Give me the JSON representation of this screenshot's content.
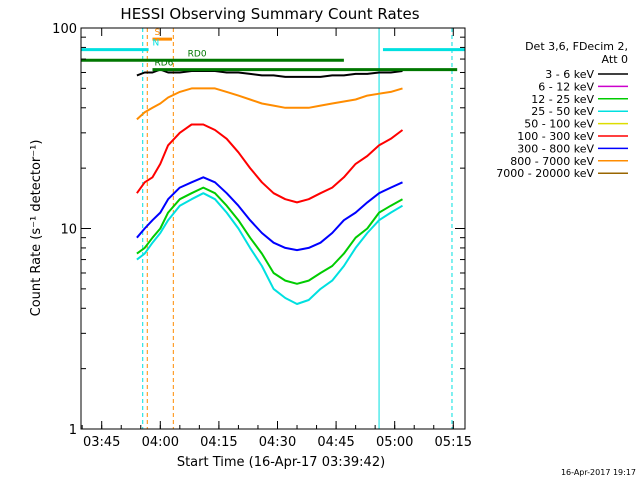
{
  "chart_data": {
    "type": "line",
    "title": "HESSI Observing Summary Count Rates",
    "xlabel": "Start Time (16-Apr-17 03:39:42)",
    "ylabel": "Count Rate (s⁻¹ detector⁻¹)",
    "y_scale": "log",
    "ylim": [
      1,
      100
    ],
    "xlim": [
      "03:39:42",
      "05:18:00"
    ],
    "x_ticks": [
      "03:45",
      "04:00",
      "04:15",
      "04:30",
      "04:45",
      "05:00",
      "05:15"
    ],
    "y_ticks": [
      "1",
      "10",
      "100"
    ],
    "legend_position": "top-right",
    "legend_title": "Det 3,6, FDecim 2,",
    "legend_subtitle": "Att 0",
    "footer": "16-Apr-2017 19:17",
    "x": [
      "03:54",
      "03:56",
      "03:58",
      "04:00",
      "04:02",
      "04:05",
      "04:08",
      "04:11",
      "04:14",
      "04:17",
      "04:20",
      "04:23",
      "04:26",
      "04:29",
      "04:32",
      "04:35",
      "04:38",
      "04:41",
      "04:44",
      "04:47",
      "04:50",
      "04:53",
      "04:56",
      "04:59",
      "05:02"
    ],
    "series": [
      {
        "name": "3 - 6 keV",
        "color": "#000000",
        "values": [
          58,
          60,
          60,
          62,
          60,
          60,
          61,
          61,
          61,
          60,
          60,
          59,
          58,
          58,
          57,
          57,
          57,
          57,
          58,
          58,
          59,
          59,
          60,
          60,
          61
        ]
      },
      {
        "name": "6 - 12 keV",
        "color": "#cc00cc",
        "values": [
          null,
          null,
          null,
          null,
          null,
          null,
          null,
          null,
          null,
          null,
          null,
          null,
          null,
          null,
          null,
          null,
          null,
          null,
          null,
          null,
          null,
          null,
          null,
          null,
          null
        ]
      },
      {
        "name": "12 - 25 keV",
        "color": "#00cc00",
        "values": [
          7.5,
          8,
          9,
          10,
          12,
          14,
          15,
          16,
          15,
          13,
          11,
          9,
          7.5,
          6,
          5.5,
          5.3,
          5.5,
          6,
          6.5,
          7.5,
          9,
          10,
          12,
          13,
          14
        ]
      },
      {
        "name": "25 - 50 keV",
        "color": "#00e0e0",
        "values": [
          7,
          7.5,
          8.5,
          9.5,
          11,
          13,
          14,
          15,
          14,
          12,
          10,
          8,
          6.5,
          5,
          4.5,
          4.2,
          4.4,
          5,
          5.5,
          6.5,
          8,
          9.5,
          11,
          12,
          13
        ]
      },
      {
        "name": "50 - 100 keV",
        "color": "#dddd00",
        "values": [
          null,
          null,
          null,
          null,
          null,
          null,
          null,
          null,
          null,
          null,
          null,
          null,
          null,
          null,
          null,
          null,
          null,
          null,
          null,
          null,
          null,
          null,
          null,
          null,
          null
        ]
      },
      {
        "name": "100 - 300 keV",
        "color": "#ff0000",
        "values": [
          15,
          17,
          18,
          21,
          26,
          30,
          33,
          33,
          31,
          28,
          24,
          20,
          17,
          15,
          14,
          13.5,
          14,
          15,
          16,
          18,
          21,
          23,
          26,
          28,
          31
        ]
      },
      {
        "name": "300 - 800 keV",
        "color": "#0000ff",
        "values": [
          9,
          10,
          11,
          12,
          14,
          16,
          17,
          18,
          17,
          15,
          13,
          11,
          9.5,
          8.5,
          8,
          7.8,
          8,
          8.5,
          9.5,
          11,
          12,
          13.5,
          15,
          16,
          17
        ]
      },
      {
        "name": "800 - 7000 keV",
        "color": "#ff8c00",
        "values": [
          35,
          38,
          40,
          42,
          45,
          48,
          50,
          50,
          50,
          48,
          46,
          44,
          42,
          41,
          40,
          40,
          40,
          41,
          42,
          43,
          44,
          46,
          47,
          48,
          50
        ]
      },
      {
        "name": "7000 - 20000 keV",
        "color": "#996600",
        "values": [
          null,
          null,
          null,
          null,
          null,
          null,
          null,
          null,
          null,
          null,
          null,
          null,
          null,
          null,
          null,
          null,
          null,
          null,
          null,
          null,
          null,
          null,
          null,
          null,
          null
        ]
      }
    ],
    "flag_bars": [
      {
        "label": "S",
        "color": "#ff8c00",
        "y": 88,
        "from": "03:58",
        "to": "04:03"
      },
      {
        "label": "N",
        "color": "#00e0e0",
        "y": 78,
        "from": "03:39:42",
        "to": "03:57"
      },
      {
        "label": "",
        "color": "#00e0e0",
        "y": 78,
        "from": "04:57",
        "to": "05:18"
      },
      {
        "label": "RD0",
        "color": "#007700",
        "y": 69,
        "from": "03:39:42",
        "to": "04:47"
      },
      {
        "label": "RD6",
        "color": "#007700",
        "y": 62,
        "from": "03:58",
        "to": "05:16"
      }
    ],
    "vertical_lines": [
      {
        "time": "03:39:42",
        "color": "#00e0e0",
        "style": "solid"
      },
      {
        "time": "03:55:30",
        "color": "#00e0e0",
        "style": "dashed"
      },
      {
        "time": "03:56:40",
        "color": "#ff8c00",
        "style": "dashed"
      },
      {
        "time": "04:03:20",
        "color": "#ff8c00",
        "style": "dashed"
      },
      {
        "time": "04:56:00",
        "color": "#00e0e0",
        "style": "solid"
      },
      {
        "time": "05:14:40",
        "color": "#00e0e0",
        "style": "dashed"
      }
    ]
  }
}
